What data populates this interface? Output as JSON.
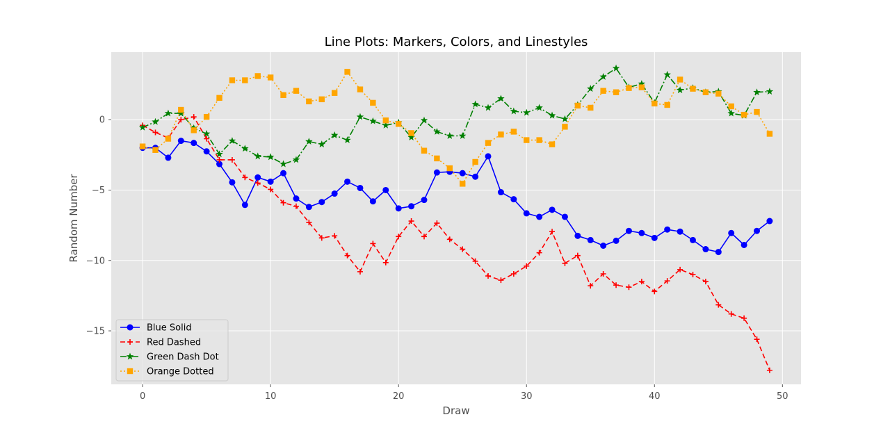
{
  "chart_data": {
    "type": "line",
    "title": "Line Plots: Markers, Colors, and Linestyles",
    "xlabel": "Draw",
    "ylabel": "Random Number",
    "xlim": [
      -2.45,
      51.45
    ],
    "ylim": [
      -18.8,
      4.8
    ],
    "xticks": [
      0,
      10,
      20,
      30,
      40,
      50
    ],
    "xtick_labels": [
      "0",
      "10",
      "20",
      "30",
      "40",
      "50"
    ],
    "yticks": [
      0,
      -5,
      -10,
      -15
    ],
    "ytick_labels": [
      "0",
      "−5",
      "−10",
      "−15"
    ],
    "grid": true,
    "legend_position": "lower-left",
    "x": [
      0,
      1,
      2,
      3,
      4,
      5,
      6,
      7,
      8,
      9,
      10,
      11,
      12,
      13,
      14,
      15,
      16,
      17,
      18,
      19,
      20,
      21,
      22,
      23,
      24,
      25,
      26,
      27,
      28,
      29,
      30,
      31,
      32,
      33,
      34,
      35,
      36,
      37,
      38,
      39,
      40,
      41,
      42,
      43,
      44,
      45,
      46,
      47,
      48,
      49
    ],
    "series": [
      {
        "name": "Blue Solid",
        "color": "#0000ff",
        "dash": "",
        "marker": "circle",
        "values": [
          -2.0,
          -2.0,
          -2.7,
          -1.5,
          -1.65,
          -2.25,
          -3.15,
          -4.45,
          -6.05,
          -4.1,
          -4.4,
          -3.8,
          -5.6,
          -6.2,
          -5.85,
          -5.25,
          -4.4,
          -4.85,
          -5.8,
          -5.0,
          -6.3,
          -6.15,
          -5.7,
          -3.75,
          -3.7,
          -3.8,
          -4.05,
          -2.6,
          -5.15,
          -5.65,
          -6.65,
          -6.9,
          -6.4,
          -6.9,
          -8.25,
          -8.55,
          -8.95,
          -8.6,
          -7.9,
          -8.05,
          -8.4,
          -7.8,
          -7.95,
          -8.55,
          -9.2,
          -9.4,
          -8.05,
          -8.9,
          -7.9,
          -7.2
        ]
      },
      {
        "name": "Red Dashed",
        "color": "#ff0000",
        "dash": "7,4",
        "marker": "plus",
        "values": [
          -0.4,
          -0.9,
          -1.3,
          0.0,
          0.2,
          -1.35,
          -2.85,
          -2.85,
          -4.1,
          -4.5,
          -4.95,
          -5.9,
          -6.15,
          -7.3,
          -8.4,
          -8.25,
          -9.65,
          -10.8,
          -8.8,
          -10.15,
          -8.3,
          -7.2,
          -8.3,
          -7.35,
          -8.5,
          -9.2,
          -10.05,
          -11.1,
          -11.4,
          -10.95,
          -10.4,
          -9.45,
          -7.95,
          -10.2,
          -9.65,
          -11.8,
          -10.95,
          -11.75,
          -11.9,
          -11.5,
          -12.2,
          -11.45,
          -10.65,
          -11.0,
          -11.5,
          -13.15,
          -13.8,
          -14.1,
          -15.6,
          -17.8
        ]
      },
      {
        "name": "Green Dash Dot",
        "color": "#008000",
        "dash": "9,3,2,3",
        "marker": "star",
        "values": [
          -0.55,
          -0.15,
          0.45,
          0.45,
          -0.6,
          -1.0,
          -2.45,
          -1.5,
          -2.05,
          -2.6,
          -2.65,
          -3.15,
          -2.85,
          -1.55,
          -1.75,
          -1.1,
          -1.45,
          0.2,
          -0.1,
          -0.4,
          -0.2,
          -1.25,
          -0.05,
          -0.85,
          -1.15,
          -1.15,
          1.1,
          0.85,
          1.5,
          0.6,
          0.5,
          0.85,
          0.3,
          0.05,
          1.05,
          2.2,
          3.05,
          3.65,
          2.3,
          2.55,
          1.2,
          3.2,
          2.1,
          2.25,
          1.95,
          2.0,
          0.45,
          0.3,
          1.95,
          2.0
        ]
      },
      {
        "name": "Orange Dotted",
        "color": "#ffa500",
        "dash": "2,3",
        "marker": "square",
        "values": [
          -1.9,
          -2.15,
          -1.35,
          0.7,
          -0.75,
          0.2,
          1.55,
          2.8,
          2.8,
          3.1,
          3.0,
          1.75,
          2.05,
          1.3,
          1.45,
          1.9,
          3.4,
          2.15,
          1.2,
          -0.05,
          -0.3,
          -0.95,
          -2.2,
          -2.75,
          -3.45,
          -4.55,
          -3.0,
          -1.65,
          -1.05,
          -0.85,
          -1.45,
          -1.45,
          -1.75,
          -0.5,
          1.0,
          0.85,
          2.05,
          1.95,
          2.25,
          2.3,
          1.15,
          1.05,
          2.85,
          2.2,
          1.95,
          1.85,
          0.95,
          0.35,
          0.55,
          -1.0
        ]
      }
    ]
  }
}
